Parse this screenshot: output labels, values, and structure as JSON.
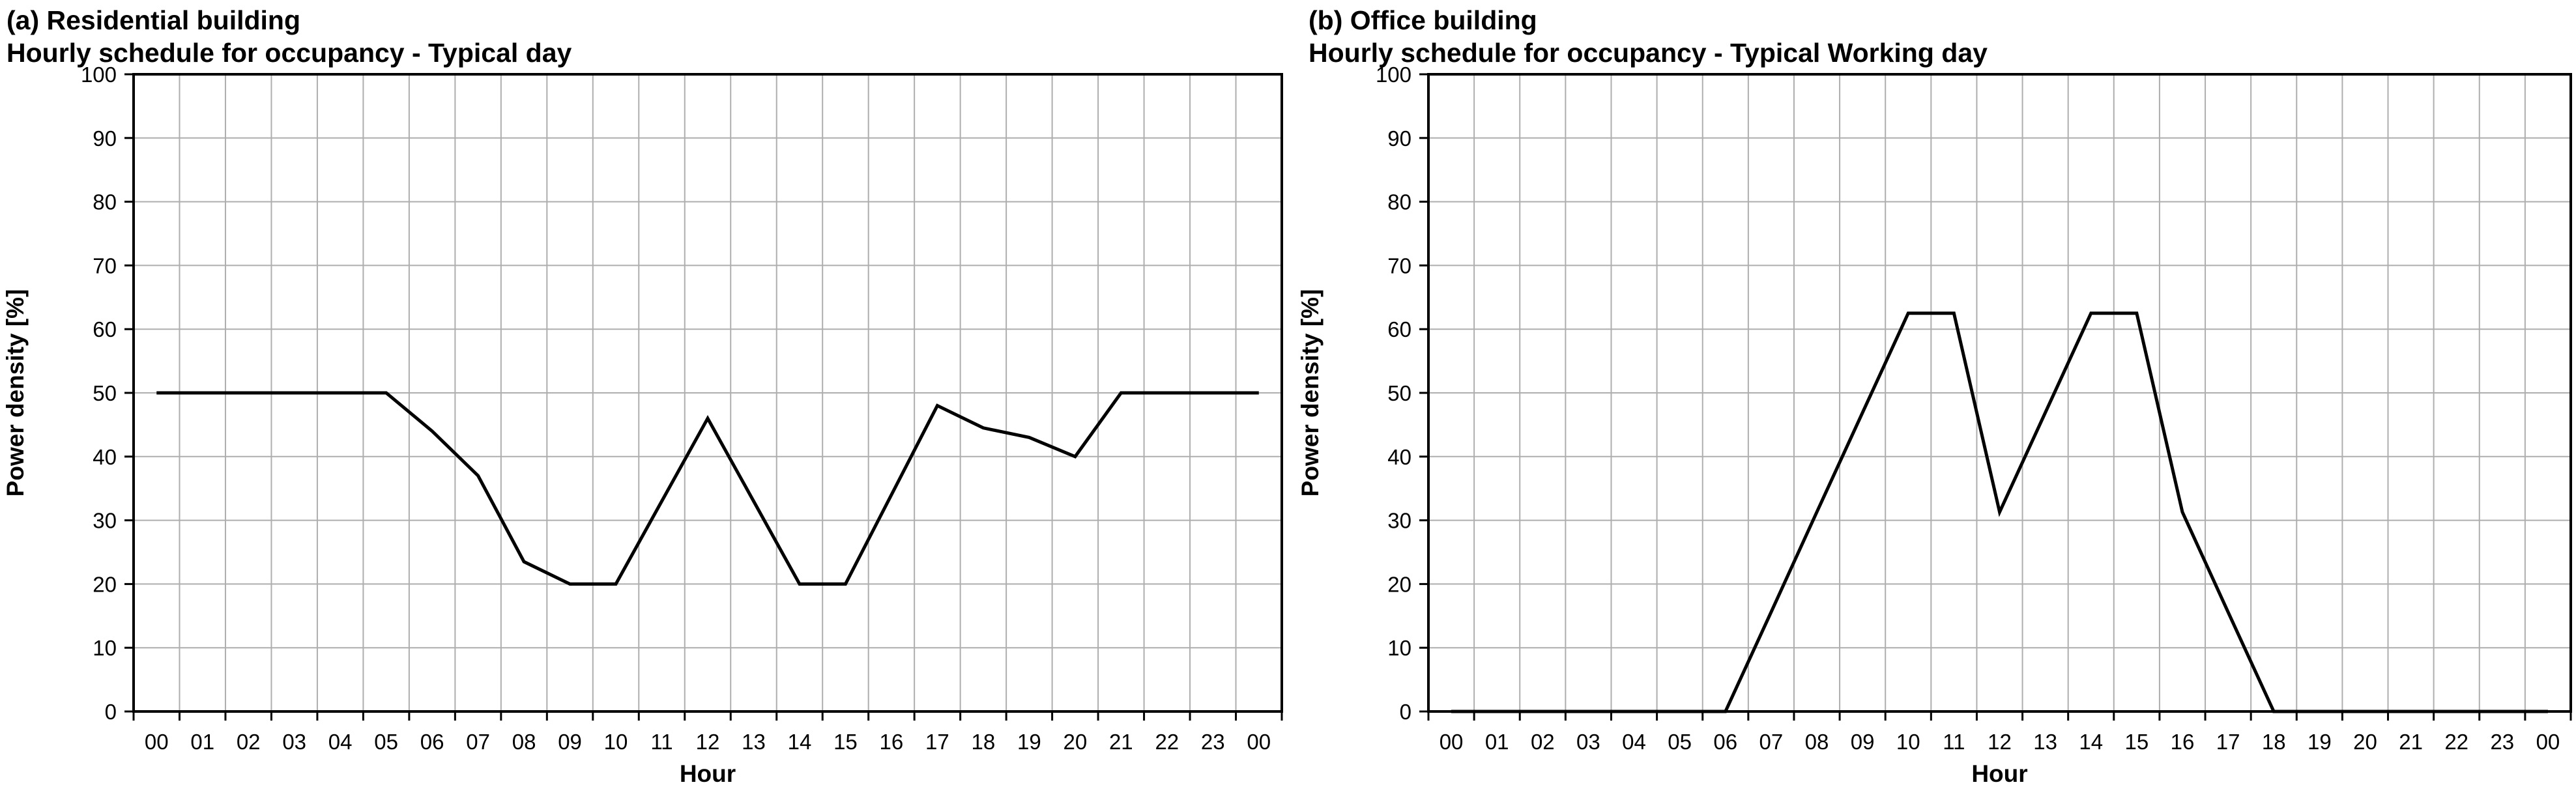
{
  "figure": {
    "background": "#ffffff",
    "line_color": "#000000",
    "gridline_color": "#aeaeae",
    "axis_color": "#000000"
  },
  "chart_data": [
    {
      "type": "line",
      "title": "(a) Residential building",
      "subtitle": "Hourly schedule for occupancy - Typical day",
      "xlabel": "Hour",
      "ylabel": "Power density [%]",
      "ylim": [
        0,
        100
      ],
      "ytick_step": 10,
      "yticks": [
        0,
        10,
        20,
        30,
        40,
        50,
        60,
        70,
        80,
        90,
        100
      ],
      "grid": "both",
      "legend": "none",
      "categories": [
        "00",
        "01",
        "02",
        "03",
        "04",
        "05",
        "06",
        "07",
        "08",
        "09",
        "10",
        "11",
        "12",
        "13",
        "14",
        "15",
        "16",
        "17",
        "18",
        "19",
        "20",
        "21",
        "22",
        "23",
        "00"
      ],
      "values": [
        50,
        50,
        50,
        50,
        50,
        50,
        44,
        37,
        23.5,
        20,
        20,
        33,
        46,
        33,
        20,
        20,
        34,
        48,
        44.5,
        43,
        40,
        50,
        50,
        50,
        50
      ]
    },
    {
      "type": "line",
      "title": "(b) Office building",
      "subtitle": "Hourly schedule for occupancy - Typical Working day",
      "xlabel": "Hour",
      "ylabel": "Power density [%]",
      "ylim": [
        0,
        100
      ],
      "ytick_step": 10,
      "yticks": [
        0,
        10,
        20,
        30,
        40,
        50,
        60,
        70,
        80,
        90,
        100
      ],
      "grid": "both",
      "legend": "none",
      "categories": [
        "00",
        "01",
        "02",
        "03",
        "04",
        "05",
        "06",
        "07",
        "08",
        "09",
        "10",
        "11",
        "12",
        "13",
        "14",
        "15",
        "16",
        "17",
        "18",
        "19",
        "20",
        "21",
        "22",
        "23",
        "00"
      ],
      "values": [
        0,
        0,
        0,
        0,
        0,
        0,
        0,
        15.6,
        31.3,
        46.9,
        62.5,
        62.5,
        31.3,
        46.9,
        62.5,
        62.5,
        31.3,
        15.6,
        0,
        0,
        0,
        0,
        0,
        0,
        0
      ]
    }
  ]
}
